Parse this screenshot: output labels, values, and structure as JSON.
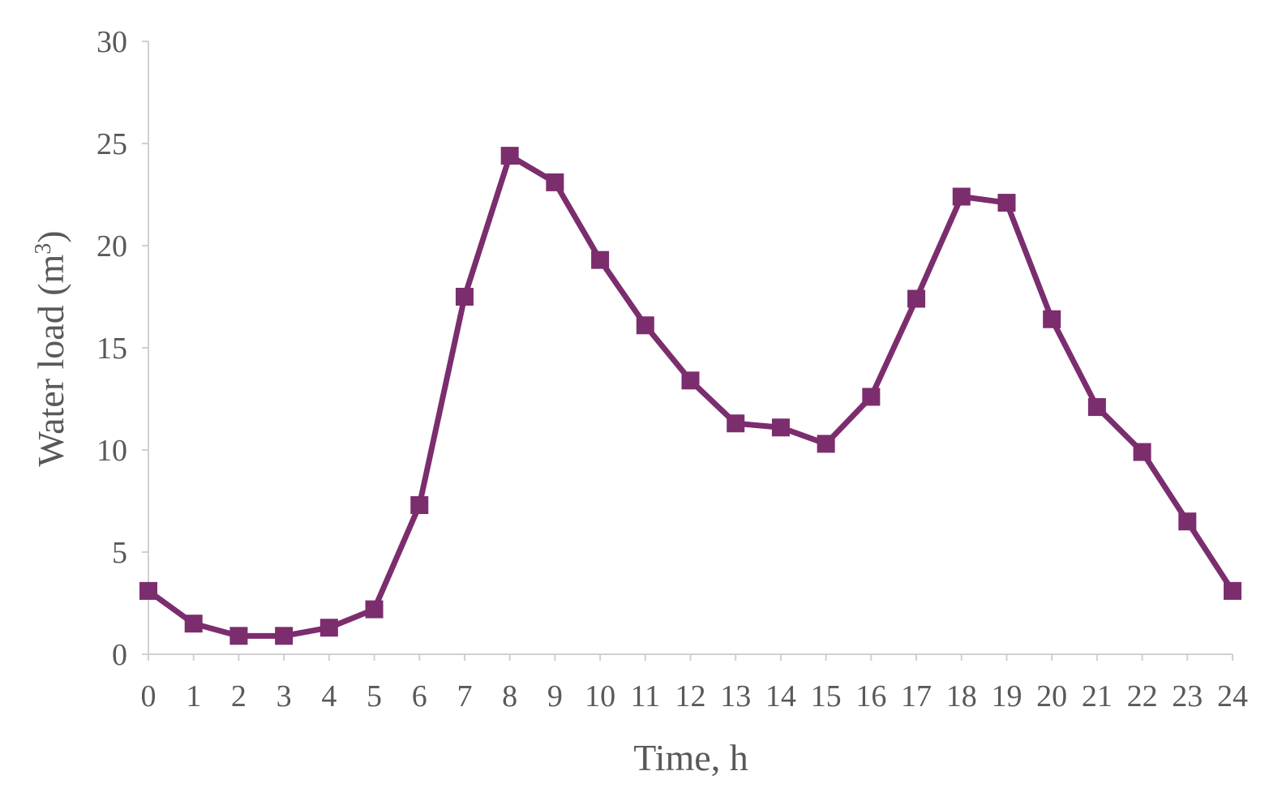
{
  "chart_data": {
    "type": "line",
    "title": "",
    "xlabel": "Time, h",
    "ylabel_main": "Water load (m",
    "ylabel_sup": "3",
    "ylabel_close": ")",
    "xlim": [
      0,
      24
    ],
    "ylim": [
      0,
      30
    ],
    "x_ticks": [
      0,
      1,
      2,
      3,
      4,
      5,
      6,
      7,
      8,
      9,
      10,
      11,
      12,
      13,
      14,
      15,
      16,
      17,
      18,
      19,
      20,
      21,
      22,
      23,
      24
    ],
    "y_ticks": [
      0,
      5,
      10,
      15,
      20,
      25,
      30
    ],
    "grid": false,
    "legend": "none",
    "series": [
      {
        "color": "#7b2d6e",
        "marker": "square",
        "x": [
          0,
          1,
          2,
          3,
          4,
          5,
          6,
          7,
          8,
          9,
          10,
          11,
          12,
          13,
          14,
          15,
          16,
          17,
          18,
          19,
          20,
          21,
          22,
          23,
          24
        ],
        "values": [
          3.1,
          1.5,
          0.9,
          0.9,
          1.3,
          2.2,
          7.3,
          17.5,
          24.4,
          23.1,
          19.3,
          16.1,
          13.4,
          11.3,
          11.1,
          10.3,
          12.6,
          17.4,
          22.4,
          22.1,
          16.4,
          12.1,
          9.9,
          6.5,
          3.1
        ]
      }
    ]
  }
}
